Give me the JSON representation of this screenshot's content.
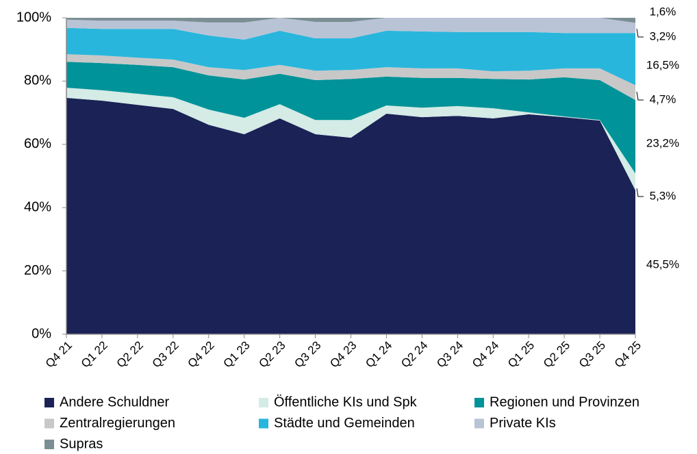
{
  "chart_data": {
    "type": "stacked_area",
    "categories": [
      "Q4 21",
      "Q1 22",
      "Q2 22",
      "Q3 22",
      "Q4 22",
      "Q1 23",
      "Q2 23",
      "Q3 23",
      "Q4 23",
      "Q1 24",
      "Q2 24",
      "Q3 24",
      "Q4 24",
      "Q1 25",
      "Q2 25",
      "Q3 25",
      "Q4 25"
    ],
    "ylim": [
      0,
      100
    ],
    "yticks": [
      {
        "value": 0,
        "label": "0%"
      },
      {
        "value": 20,
        "label": "20%"
      },
      {
        "value": 40,
        "label": "40%"
      },
      {
        "value": 60,
        "label": "60%"
      },
      {
        "value": 80,
        "label": "80%"
      },
      {
        "value": 100,
        "label": "100%"
      }
    ],
    "legend": "bottom",
    "series": [
      {
        "name": "Andere Schuldner",
        "color": "#1b2255",
        "values": [
          74.7,
          73.8,
          72.5,
          71.2,
          66.2,
          63.2,
          68.2,
          63.2,
          62.1,
          69.7,
          68.6,
          69.0,
          68.2,
          69.5,
          68.6,
          67.5,
          45.5
        ],
        "value_labels": [
          null,
          null,
          null,
          null,
          null,
          null,
          null,
          null,
          null,
          null,
          null,
          null,
          null,
          null,
          null,
          null,
          "45,5%"
        ]
      },
      {
        "name": "Öffentliche KIs und Spk",
        "color": "#d4ebe6",
        "values": [
          3.2,
          3.3,
          3.5,
          3.7,
          4.8,
          5.2,
          4.5,
          4.5,
          5.6,
          2.6,
          3.0,
          3.1,
          3.2,
          0.6,
          0.2,
          0.2,
          5.3
        ],
        "value_labels": [
          null,
          null,
          null,
          null,
          null,
          null,
          null,
          null,
          null,
          null,
          null,
          null,
          null,
          null,
          null,
          null,
          "5,3%"
        ]
      },
      {
        "name": "Regionen und Provinzen",
        "color": "#009399",
        "values": [
          8.2,
          8.6,
          9.1,
          9.5,
          10.8,
          12.1,
          9.6,
          12.6,
          13.0,
          9.1,
          9.4,
          8.9,
          9.3,
          10.4,
          12.4,
          12.6,
          23.2
        ],
        "value_labels": [
          null,
          null,
          null,
          null,
          null,
          null,
          null,
          null,
          null,
          null,
          null,
          null,
          null,
          null,
          null,
          null,
          "23,2%"
        ]
      },
      {
        "name": "Zentralregierungen",
        "color": "#c8c8c8",
        "values": [
          2.4,
          2.4,
          2.3,
          2.4,
          2.6,
          3.0,
          2.8,
          3.0,
          2.8,
          3.0,
          3.0,
          3.0,
          2.4,
          2.8,
          2.8,
          3.7,
          4.7
        ],
        "value_labels": [
          null,
          null,
          null,
          null,
          null,
          null,
          null,
          null,
          null,
          null,
          null,
          null,
          null,
          null,
          null,
          null,
          "4,7%"
        ]
      },
      {
        "name": "Städte und Gemeinden",
        "color": "#29b6dc",
        "values": [
          8.3,
          8.4,
          9.1,
          9.7,
          10.0,
          9.6,
          10.8,
          10.2,
          10.0,
          11.5,
          11.7,
          11.5,
          12.4,
          12.2,
          11.2,
          11.2,
          16.5
        ],
        "value_labels": [
          null,
          null,
          null,
          null,
          null,
          null,
          null,
          null,
          null,
          null,
          null,
          null,
          null,
          null,
          null,
          null,
          "16,5%"
        ]
      },
      {
        "name": "Private KIs",
        "color": "#b8c4d6",
        "values": [
          2.6,
          2.6,
          2.6,
          2.6,
          4.1,
          5.4,
          4.1,
          5.2,
          5.2,
          4.1,
          4.3,
          4.5,
          4.5,
          4.5,
          4.8,
          4.8,
          3.2
        ],
        "value_labels": [
          null,
          null,
          null,
          null,
          null,
          null,
          null,
          null,
          null,
          null,
          null,
          null,
          null,
          null,
          null,
          null,
          "3,2%"
        ]
      },
      {
        "name": "Supras",
        "color": "#7b8e94",
        "values": [
          0.6,
          0.9,
          0.9,
          0.9,
          1.5,
          1.5,
          0.0,
          1.3,
          1.3,
          0.0,
          0.0,
          0.0,
          0.0,
          0.0,
          0.0,
          0.0,
          1.6
        ],
        "value_labels": [
          null,
          null,
          null,
          null,
          null,
          null,
          null,
          null,
          null,
          null,
          null,
          null,
          null,
          null,
          null,
          null,
          "1,6%"
        ]
      }
    ]
  }
}
